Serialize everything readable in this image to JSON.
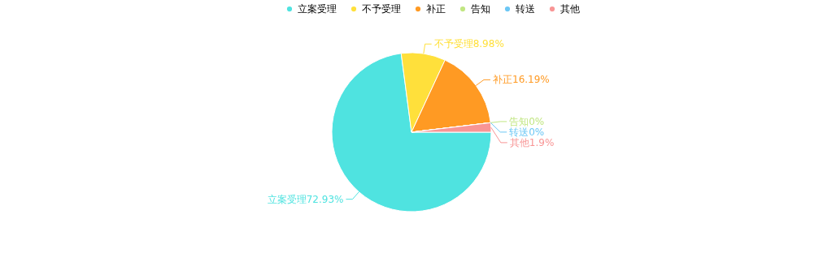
{
  "chart_data": {
    "type": "pie",
    "categories": [
      "立案受理",
      "不予受理",
      "补正",
      "告知",
      "转送",
      "其他"
    ],
    "values": [
      72.93,
      8.98,
      16.19,
      0,
      0,
      1.9
    ],
    "value_labels": [
      "72.93%",
      "8.98%",
      "16.19%",
      "0%",
      "0%",
      "1.9%"
    ],
    "colors": [
      "#4fe3e0",
      "#ffe03b",
      "#ff9a23",
      "#c1e682",
      "#6cc7f5",
      "#f89595"
    ],
    "legend": "top"
  }
}
